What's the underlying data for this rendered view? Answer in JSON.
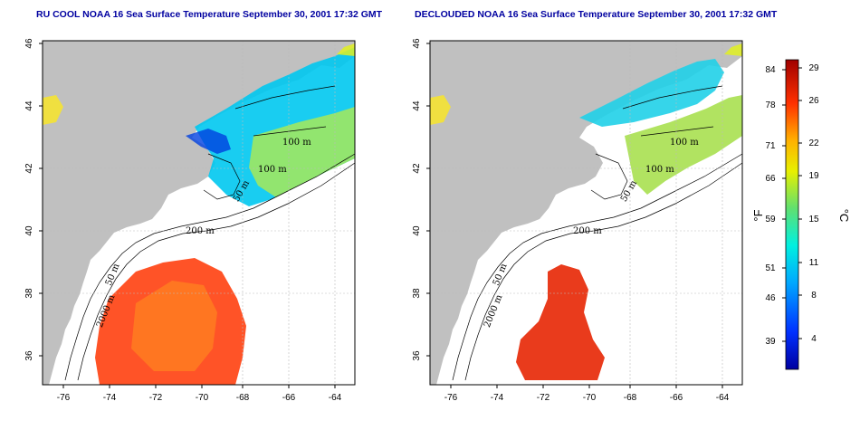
{
  "panels": [
    {
      "id": "left",
      "title": "RU COOL NOAA 16 Sea Surface Temperature September 30, 2001 17:32 GMT",
      "contour_labels": [
        "100 m",
        "100 m",
        "50 m",
        "200 m",
        "50 m",
        "2000 m"
      ]
    },
    {
      "id": "right",
      "title": "DECLOUDED NOAA 16 Sea Surface Temperature September 30, 2001 17:32 GMT",
      "contour_labels": [
        "100 m",
        "100 m",
        "50 m",
        "200 m",
        "50 m",
        "2000 m"
      ]
    }
  ],
  "axes": {
    "x_ticks": [
      "-76",
      "-74",
      "-72",
      "-70",
      "-68",
      "-66",
      "-64"
    ],
    "y_ticks": [
      "46",
      "44",
      "42",
      "40",
      "38",
      "36"
    ],
    "lon_range": [
      -77,
      -63
    ],
    "lat_range": [
      35,
      46
    ]
  },
  "colorbar": {
    "f_label": "°F",
    "c_label": "°C",
    "f_ticks": [
      "84",
      "78",
      "71",
      "66",
      "59",
      "51",
      "46",
      "39"
    ],
    "c_ticks": [
      "29",
      "26",
      "22",
      "19",
      "15",
      "11",
      "8",
      "4"
    ]
  },
  "colors": {
    "land": "#c0c0c0",
    "ocean": "#ffffff",
    "title": "#0000a0"
  }
}
